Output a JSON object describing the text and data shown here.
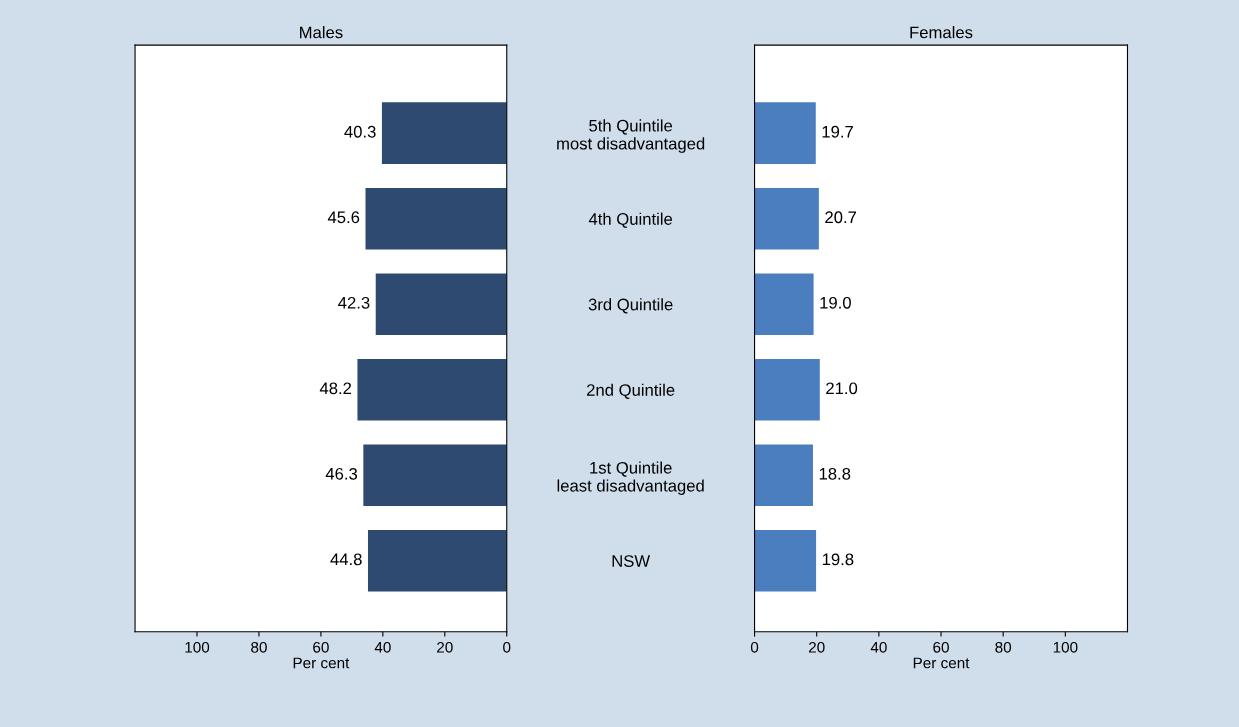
{
  "chart_data": [
    {
      "type": "bar",
      "orientation": "horizontal",
      "title": "Males",
      "xlabel": "Per cent",
      "categories": [
        "5th Quintile\nmost disadvantaged",
        "4th Quintile",
        "3rd Quintile",
        "2nd Quintile",
        "1st Quintile\nleast disadvantaged",
        "NSW"
      ],
      "values": [
        40.3,
        45.6,
        42.3,
        48.2,
        46.3,
        44.8
      ],
      "color": "#2e4a70",
      "value_labels": [
        "40.3",
        "45.6",
        "42.3",
        "48.2",
        "46.3",
        "44.8"
      ],
      "xlim": [
        120,
        0
      ],
      "xticks": [
        100,
        80,
        60,
        40,
        20,
        0
      ],
      "grid": false,
      "legend": false
    },
    {
      "type": "bar",
      "orientation": "horizontal",
      "title": "Females",
      "xlabel": "Per cent",
      "categories": [
        null,
        null,
        null,
        null,
        null,
        null
      ],
      "values": [
        19.7,
        20.7,
        19.0,
        21.0,
        18.8,
        19.8
      ],
      "color": "#4a7ebf",
      "value_labels": [
        "19.7",
        "20.7",
        "19.0",
        "21.0",
        "18.8",
        "19.8"
      ],
      "xlim": [
        0,
        120
      ],
      "xticks": [
        0,
        20,
        40,
        60,
        80,
        100
      ],
      "tick_labels": "x",
      "grid": false,
      "legend": false
    }
  ]
}
